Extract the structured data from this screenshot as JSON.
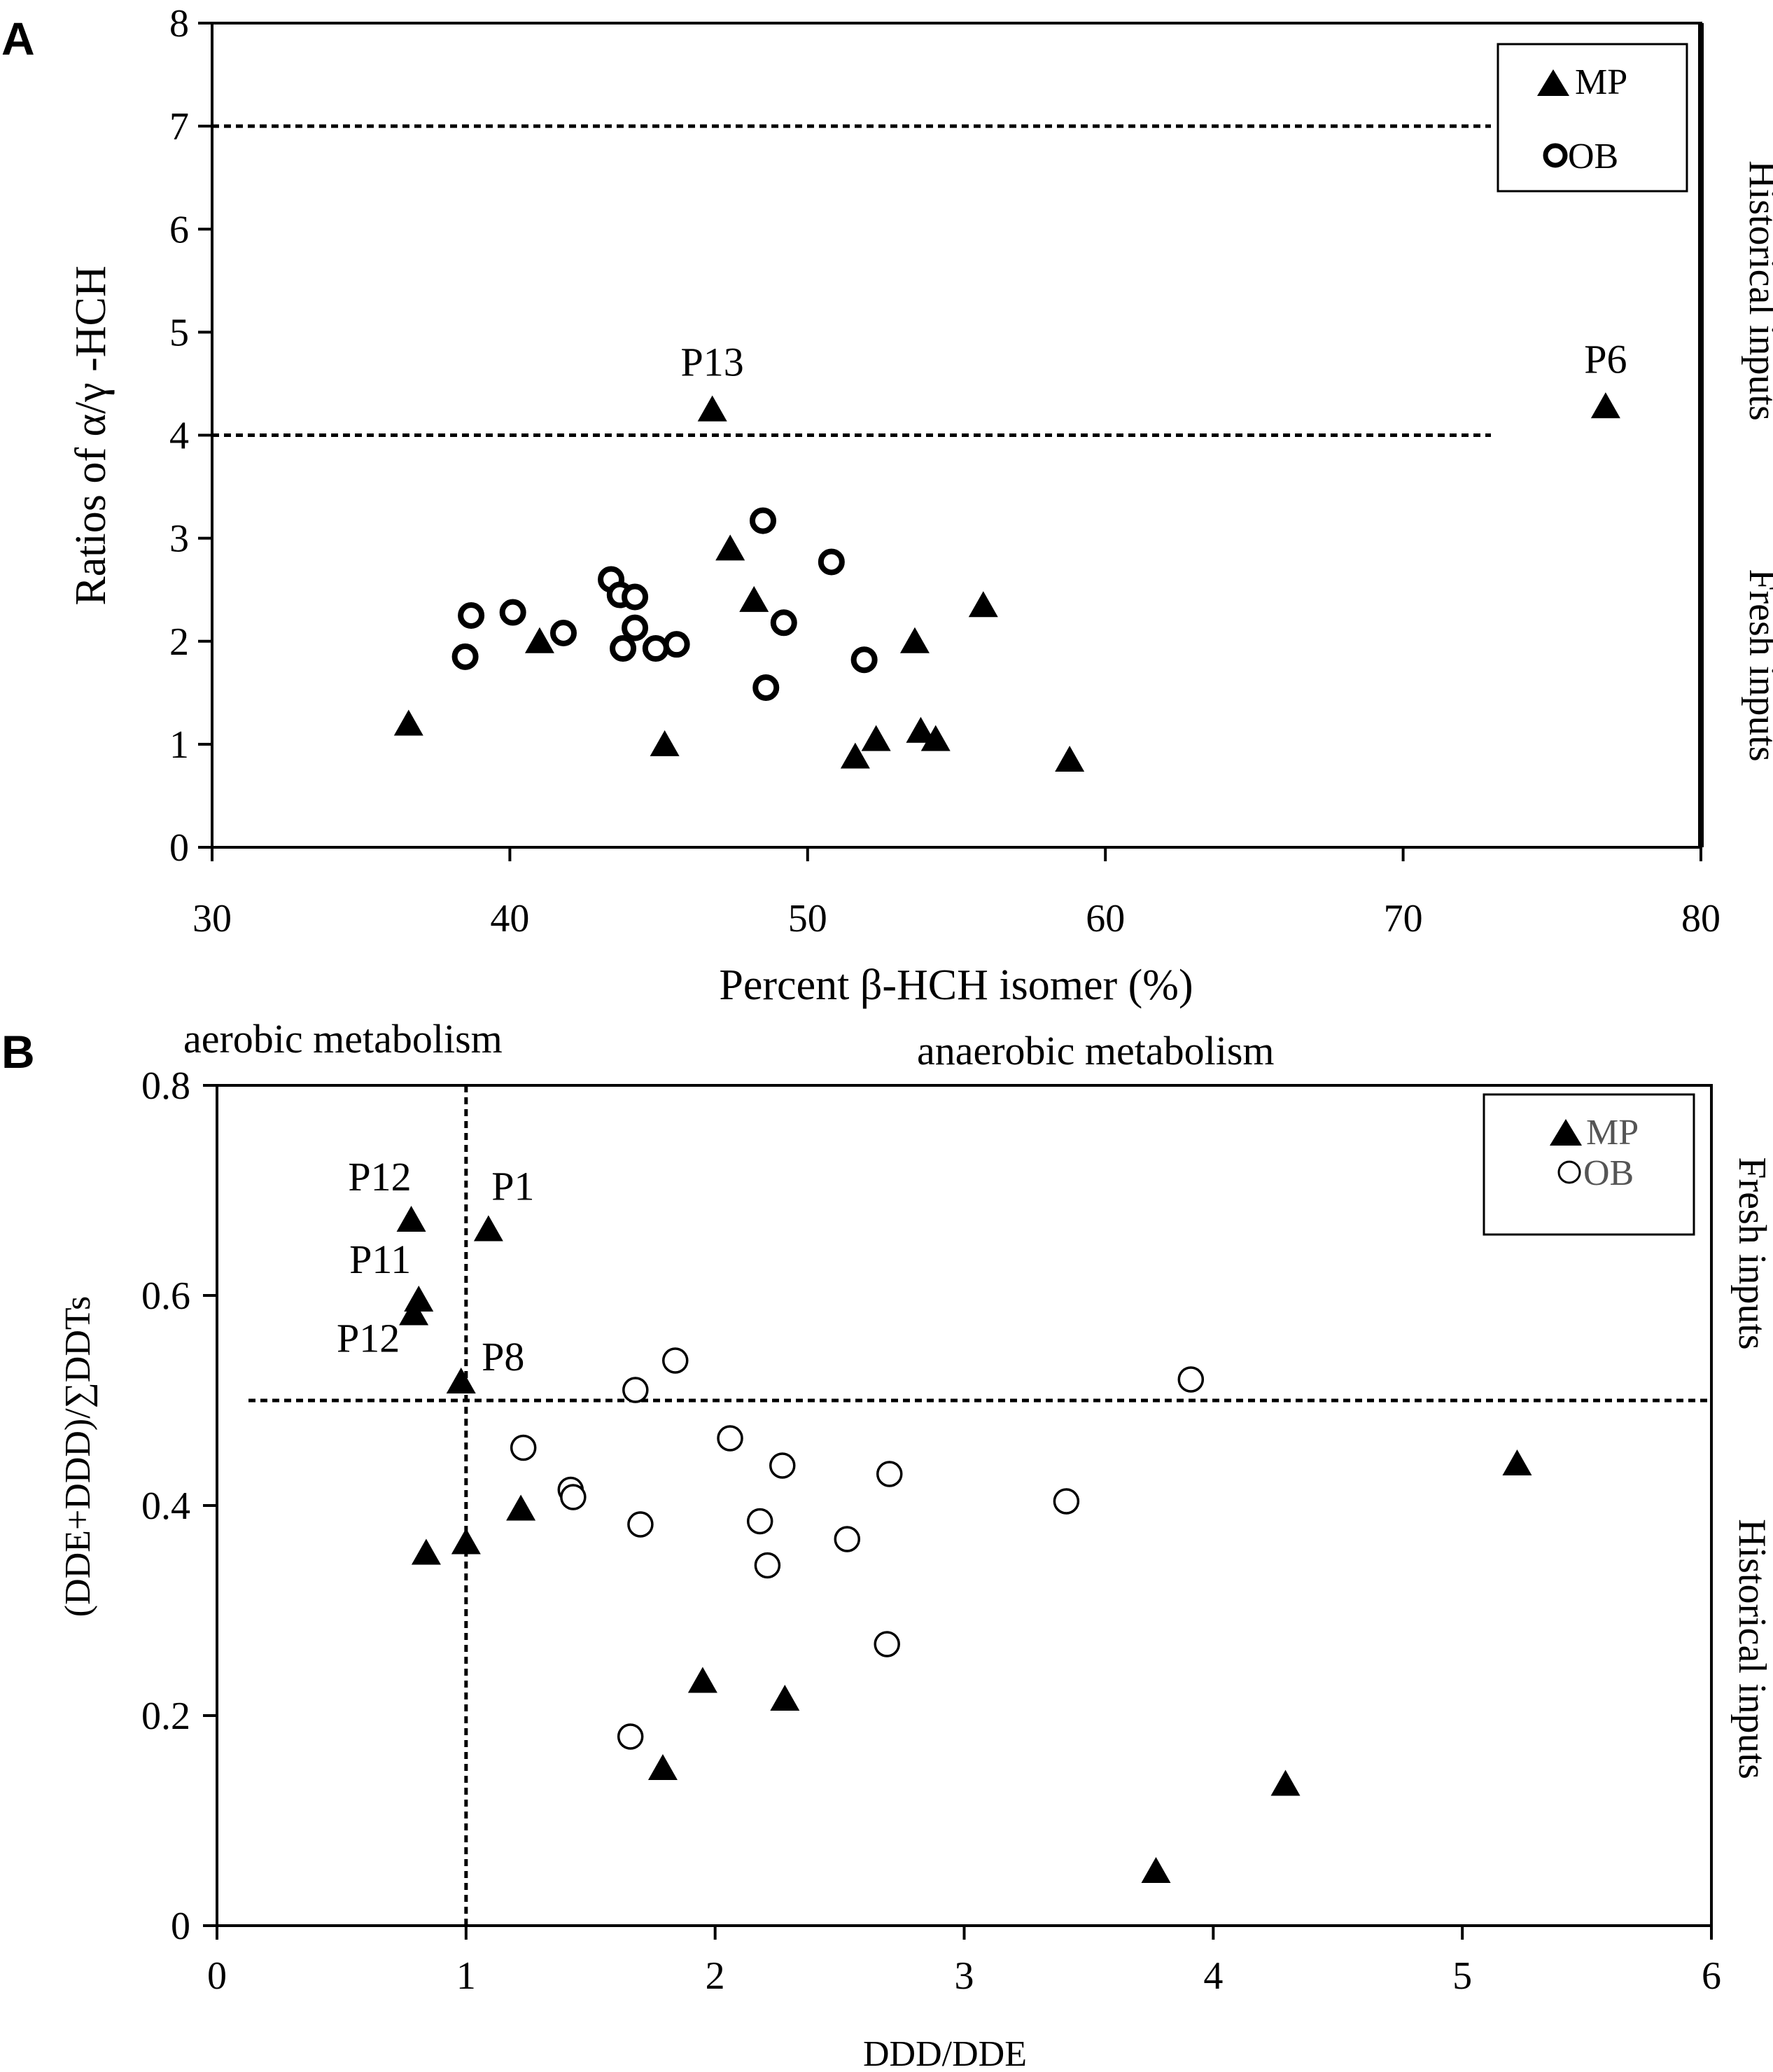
{
  "chart_data": [
    {
      "panel": "A",
      "type": "scatter",
      "xlabel": "Percent β-HCH isomer (%)",
      "ylabel": "Ratios of α/γ -HCH",
      "xlim": [
        30,
        80
      ],
      "ylim": [
        0,
        8
      ],
      "xticks": [
        30,
        40,
        50,
        60,
        70,
        80
      ],
      "yticks": [
        0,
        1,
        2,
        3,
        4,
        5,
        6,
        7,
        8
      ],
      "reference_lines": [
        {
          "axis": "y",
          "value": 7
        },
        {
          "axis": "y",
          "value": 4
        }
      ],
      "zones": [
        "Historical inputs",
        "Fresh inputs"
      ],
      "legend": {
        "position": "top-right",
        "entries": [
          "MP",
          "OB"
        ]
      },
      "series": [
        {
          "name": "MP",
          "marker": "triangle-filled",
          "points": [
            {
              "x": 36.6,
              "y": 1.2
            },
            {
              "x": 41.0,
              "y": 2.0
            },
            {
              "x": 45.2,
              "y": 1.0
            },
            {
              "x": 46.8,
              "y": 4.25,
              "label": "P13"
            },
            {
              "x": 47.4,
              "y": 2.9
            },
            {
              "x": 48.2,
              "y": 2.4
            },
            {
              "x": 51.6,
              "y": 0.88
            },
            {
              "x": 52.3,
              "y": 1.05
            },
            {
              "x": 53.6,
              "y": 2.0
            },
            {
              "x": 53.8,
              "y": 1.13
            },
            {
              "x": 54.3,
              "y": 1.05
            },
            {
              "x": 55.9,
              "y": 2.35
            },
            {
              "x": 58.8,
              "y": 0.85
            },
            {
              "x": 76.8,
              "y": 4.28,
              "label": "P6"
            }
          ]
        },
        {
          "name": "OB",
          "marker": "circle-open",
          "points": [
            {
              "x": 38.5,
              "y": 1.85
            },
            {
              "x": 38.7,
              "y": 2.25
            },
            {
              "x": 40.1,
              "y": 2.28
            },
            {
              "x": 41.8,
              "y": 2.08
            },
            {
              "x": 43.4,
              "y": 2.6
            },
            {
              "x": 43.7,
              "y": 2.45
            },
            {
              "x": 44.2,
              "y": 2.43
            },
            {
              "x": 44.2,
              "y": 2.13
            },
            {
              "x": 43.8,
              "y": 1.93
            },
            {
              "x": 44.9,
              "y": 1.93
            },
            {
              "x": 45.6,
              "y": 1.97
            },
            {
              "x": 48.5,
              "y": 3.17
            },
            {
              "x": 48.6,
              "y": 1.55
            },
            {
              "x": 49.2,
              "y": 2.18
            },
            {
              "x": 50.8,
              "y": 2.77
            },
            {
              "x": 51.9,
              "y": 1.82
            }
          ]
        }
      ]
    },
    {
      "panel": "B",
      "type": "scatter",
      "xlabel": "DDD/DDE",
      "ylabel": "(DDE+DDD)/∑DDTs",
      "xlim": [
        0,
        6
      ],
      "ylim": [
        0,
        0.8
      ],
      "xticks": [
        0,
        1,
        2,
        3,
        4,
        5,
        6
      ],
      "yticks": [
        0,
        0.2,
        0.4,
        0.6,
        0.8
      ],
      "ytick_labels": [
        "0",
        "0.2",
        "0.4",
        "0.6",
        "0.8"
      ],
      "reference_lines": [
        {
          "axis": "y",
          "value": 0.5
        },
        {
          "axis": "x",
          "value": 1
        }
      ],
      "region_labels": [
        "aerobic metabolism",
        "anaerobic metabolism"
      ],
      "zones": [
        "Fresh inputs",
        "Historical inputs"
      ],
      "legend": {
        "position": "top-right",
        "entries": [
          "MP",
          "OB"
        ]
      },
      "series": [
        {
          "name": "MP",
          "marker": "triangle-filled",
          "points": [
            {
              "x": 0.78,
              "y": 0.672,
              "label": "P12"
            },
            {
              "x": 1.09,
              "y": 0.663,
              "label": "P1"
            },
            {
              "x": 0.81,
              "y": 0.596,
              "label": "P11"
            },
            {
              "x": 0.79,
              "y": 0.583,
              "label": "P12"
            },
            {
              "x": 0.98,
              "y": 0.518,
              "label": "P8"
            },
            {
              "x": 1.22,
              "y": 0.397
            },
            {
              "x": 0.84,
              "y": 0.355
            },
            {
              "x": 1.0,
              "y": 0.365
            },
            {
              "x": 1.95,
              "y": 0.233
            },
            {
              "x": 1.79,
              "y": 0.15
            },
            {
              "x": 2.28,
              "y": 0.216
            },
            {
              "x": 3.77,
              "y": 0.052
            },
            {
              "x": 4.29,
              "y": 0.135
            },
            {
              "x": 5.22,
              "y": 0.44
            }
          ]
        },
        {
          "name": "OB",
          "marker": "circle-open",
          "points": [
            {
              "x": 1.84,
              "y": 0.538
            },
            {
              "x": 1.68,
              "y": 0.51
            },
            {
              "x": 3.91,
              "y": 0.52
            },
            {
              "x": 1.23,
              "y": 0.455
            },
            {
              "x": 2.06,
              "y": 0.464
            },
            {
              "x": 2.27,
              "y": 0.438
            },
            {
              "x": 2.7,
              "y": 0.43
            },
            {
              "x": 1.42,
              "y": 0.415
            },
            {
              "x": 1.43,
              "y": 0.408
            },
            {
              "x": 3.41,
              "y": 0.404
            },
            {
              "x": 1.7,
              "y": 0.382
            },
            {
              "x": 2.18,
              "y": 0.385
            },
            {
              "x": 2.53,
              "y": 0.368
            },
            {
              "x": 2.21,
              "y": 0.343
            },
            {
              "x": 2.69,
              "y": 0.268
            },
            {
              "x": 1.66,
              "y": 0.18
            }
          ]
        }
      ]
    }
  ]
}
